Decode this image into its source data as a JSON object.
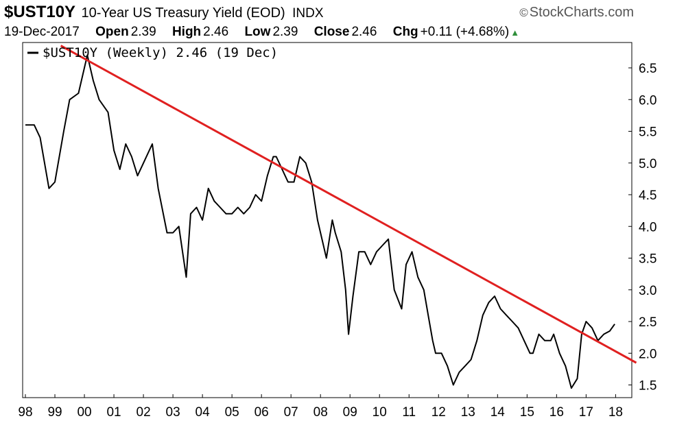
{
  "header": {
    "symbol": "$UST10Y",
    "description": "10-Year US Treasury Yield (EOD)",
    "exchange": "INDX",
    "brand": "StockCharts.com",
    "brand_icon": "copyright-icon",
    "date": "19-Dec-2017",
    "open_label": "Open",
    "open_value": "2.39",
    "high_label": "High",
    "high_value": "2.46",
    "low_label": "Low",
    "low_value": "2.39",
    "close_label": "Close",
    "close_value": "2.46",
    "chg_label": "Chg",
    "chg_value": "+0.11 (+4.68%)",
    "chg_icon": "up-triangle-icon",
    "legend": "$UST10Y (Weekly) 2.46 (19 Dec)"
  },
  "colors": {
    "price_line": "#000000",
    "trendline": "#e02020",
    "up": "#2f8f3a"
  },
  "chart_data": {
    "type": "line",
    "x_tick_labels": [
      "98",
      "99",
      "00",
      "01",
      "02",
      "03",
      "04",
      "05",
      "06",
      "07",
      "08",
      "09",
      "10",
      "11",
      "12",
      "13",
      "14",
      "15",
      "16",
      "17",
      "18"
    ],
    "x_range": [
      1998.0,
      2018.2
    ],
    "y_tick_labels": [
      "1.5",
      "2.0",
      "2.5",
      "3.0",
      "3.5",
      "4.0",
      "4.5",
      "5.0",
      "5.5",
      "6.0",
      "6.5"
    ],
    "y_range": [
      1.3,
      6.9
    ],
    "grid": false,
    "series": [
      {
        "name": "$UST10Y",
        "x": [
          1998.0,
          1998.3,
          1998.5,
          1998.8,
          1999.0,
          1999.3,
          1999.5,
          1999.8,
          2000.0,
          2000.1,
          2000.3,
          2000.5,
          2000.8,
          2001.0,
          2001.2,
          2001.4,
          2001.6,
          2001.8,
          2002.0,
          2002.3,
          2002.5,
          2002.8,
          2003.0,
          2003.2,
          2003.45,
          2003.6,
          2003.8,
          2004.0,
          2004.2,
          2004.4,
          2004.6,
          2004.8,
          2005.0,
          2005.2,
          2005.4,
          2005.6,
          2005.8,
          2006.0,
          2006.2,
          2006.4,
          2006.5,
          2006.7,
          2006.9,
          2007.1,
          2007.3,
          2007.5,
          2007.7,
          2007.9,
          2008.0,
          2008.2,
          2008.4,
          2008.5,
          2008.7,
          2008.85,
          2008.95,
          2009.1,
          2009.3,
          2009.5,
          2009.7,
          2009.9,
          2010.1,
          2010.3,
          2010.5,
          2010.75,
          2010.9,
          2011.1,
          2011.3,
          2011.5,
          2011.65,
          2011.8,
          2011.9,
          2012.1,
          2012.3,
          2012.5,
          2012.7,
          2012.9,
          2013.1,
          2013.3,
          2013.5,
          2013.7,
          2013.9,
          2014.1,
          2014.3,
          2014.5,
          2014.7,
          2014.9,
          2015.1,
          2015.2,
          2015.4,
          2015.6,
          2015.8,
          2015.9,
          2016.1,
          2016.3,
          2016.5,
          2016.7,
          2016.85,
          2017.0,
          2017.2,
          2017.4,
          2017.6,
          2017.8,
          2017.97
        ],
        "y": [
          5.6,
          5.6,
          5.4,
          4.6,
          4.7,
          5.5,
          6.0,
          6.1,
          6.5,
          6.7,
          6.3,
          6.0,
          5.8,
          5.2,
          4.9,
          5.3,
          5.1,
          4.8,
          5.0,
          5.3,
          4.6,
          3.9,
          3.9,
          4.0,
          3.2,
          4.2,
          4.3,
          4.1,
          4.6,
          4.4,
          4.3,
          4.2,
          4.2,
          4.3,
          4.2,
          4.3,
          4.5,
          4.4,
          4.8,
          5.1,
          5.1,
          4.9,
          4.7,
          4.7,
          5.1,
          5.0,
          4.7,
          4.1,
          3.9,
          3.5,
          4.1,
          3.9,
          3.6,
          3.0,
          2.3,
          2.9,
          3.6,
          3.6,
          3.4,
          3.6,
          3.7,
          3.8,
          3.0,
          2.7,
          3.4,
          3.6,
          3.2,
          3.0,
          2.6,
          2.2,
          2.0,
          2.0,
          1.8,
          1.5,
          1.7,
          1.8,
          1.9,
          2.2,
          2.6,
          2.8,
          2.9,
          2.7,
          2.6,
          2.5,
          2.4,
          2.2,
          2.0,
          2.0,
          2.3,
          2.2,
          2.2,
          2.3,
          2.0,
          1.8,
          1.45,
          1.6,
          2.3,
          2.5,
          2.4,
          2.2,
          2.3,
          2.35,
          2.46
        ]
      },
      {
        "name": "",
        "x": [
          1999.2,
          2018.7
        ],
        "y": [
          6.85,
          1.85
        ]
      }
    ]
  }
}
